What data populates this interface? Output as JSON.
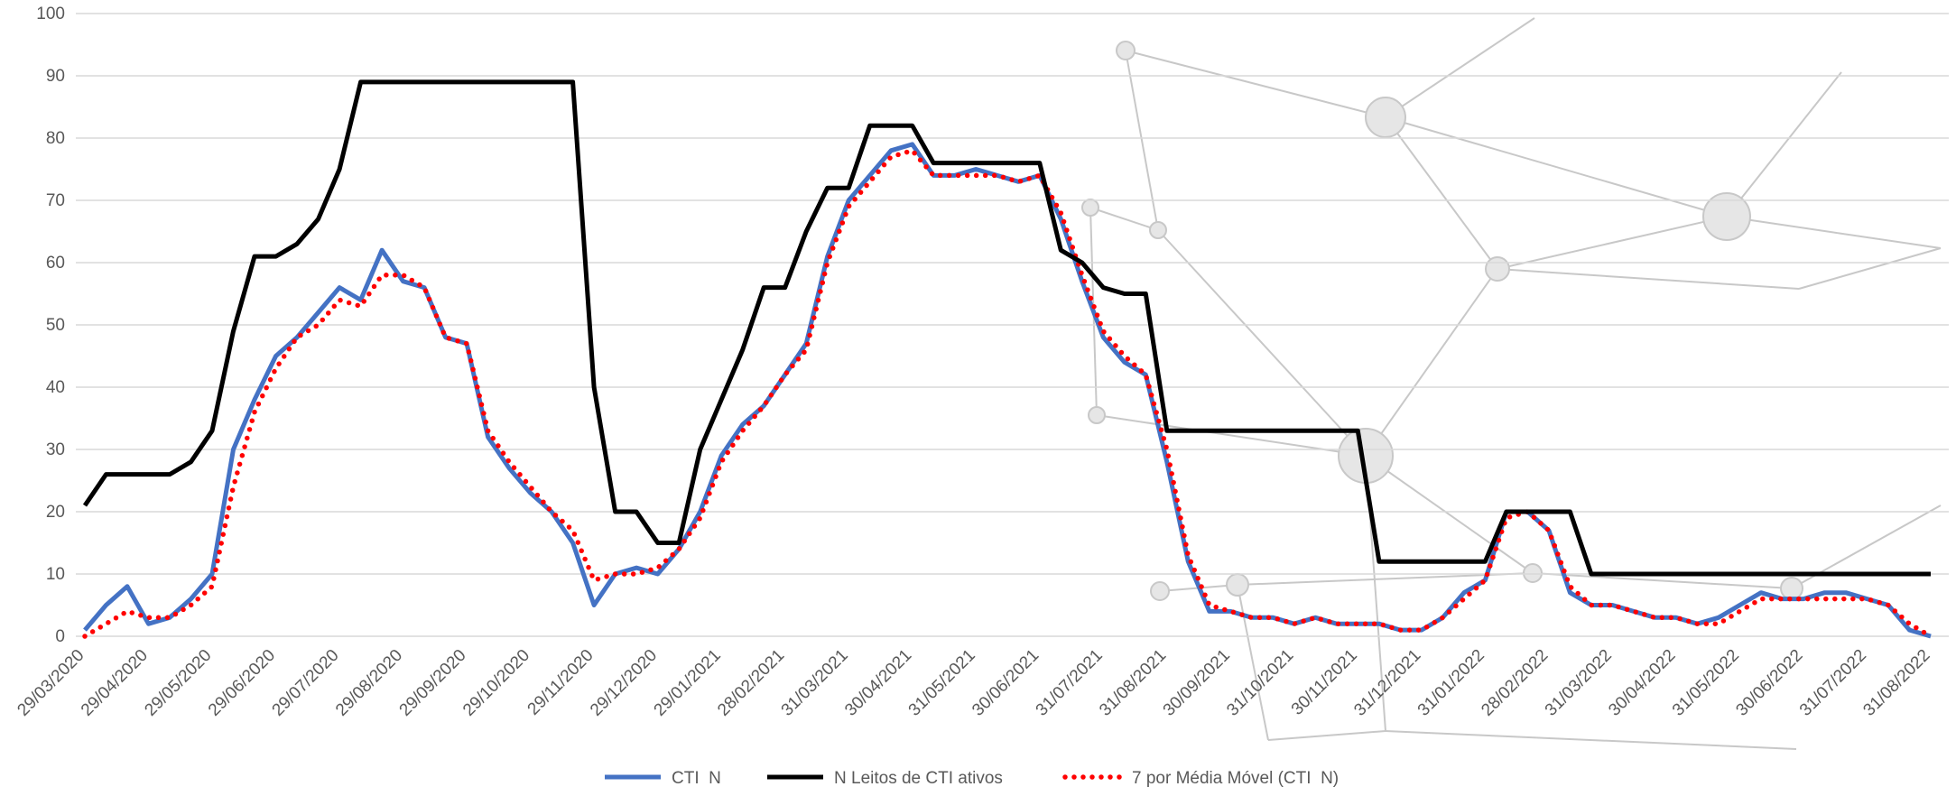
{
  "chart_data": {
    "type": "line",
    "categories": [
      "29/03/2020",
      null,
      null,
      "29/04/2020",
      null,
      null,
      "29/05/2020",
      null,
      null,
      "29/06/2020",
      null,
      null,
      "29/07/2020",
      null,
      null,
      "29/08/2020",
      null,
      null,
      "29/09/2020",
      null,
      null,
      "29/10/2020",
      null,
      null,
      "29/11/2020",
      null,
      null,
      "29/12/2020",
      null,
      null,
      "29/01/2021",
      null,
      null,
      "28/02/2021",
      null,
      null,
      "31/03/2021",
      null,
      null,
      "30/04/2021",
      null,
      null,
      "31/05/2021",
      null,
      null,
      "30/06/2021",
      null,
      null,
      "31/07/2021",
      null,
      null,
      "31/08/2021",
      null,
      null,
      "30/09/2021",
      null,
      null,
      "31/10/2021",
      null,
      null,
      "30/11/2021",
      null,
      null,
      "31/12/2021",
      null,
      null,
      "31/01/2022",
      null,
      null,
      "28/02/2022",
      null,
      null,
      "31/03/2022",
      null,
      null,
      "30/04/2022",
      null,
      null,
      "31/05/2022",
      null,
      null,
      "30/06/2022",
      null,
      null,
      "31/07/2022",
      null,
      null,
      "31/08/2022"
    ],
    "series": [
      {
        "name": "CTI  N",
        "color": "#4472c4",
        "line_style": "solid",
        "values": [
          1,
          5,
          8,
          2,
          3,
          6,
          10,
          30,
          38,
          45,
          48,
          52,
          56,
          54,
          62,
          57,
          56,
          48,
          47,
          32,
          27,
          23,
          20,
          15,
          5,
          10,
          11,
          10,
          14,
          20,
          29,
          34,
          37,
          42,
          47,
          61,
          70,
          74,
          78,
          79,
          74,
          74,
          75,
          74,
          73,
          74,
          67,
          57,
          48,
          44,
          42,
          28,
          12,
          4,
          4,
          3,
          3,
          2,
          3,
          2,
          2,
          2,
          1,
          1,
          3,
          7,
          9,
          20,
          20,
          17,
          7,
          5,
          5,
          4,
          3,
          3,
          2,
          3,
          5,
          7,
          6,
          6,
          7,
          7,
          6,
          5,
          1,
          0
        ]
      },
      {
        "name": "N Leitos de CTI ativos",
        "color": "#000000",
        "line_style": "solid",
        "values": [
          21,
          26,
          26,
          26,
          26,
          28,
          33,
          49,
          61,
          61,
          63,
          67,
          75,
          89,
          89,
          89,
          89,
          89,
          89,
          89,
          89,
          89,
          89,
          89,
          40,
          20,
          20,
          15,
          15,
          30,
          38,
          46,
          56,
          56,
          65,
          72,
          72,
          82,
          82,
          82,
          76,
          76,
          76,
          76,
          76,
          76,
          62,
          60,
          56,
          55,
          55,
          33,
          33,
          33,
          33,
          33,
          33,
          33,
          33,
          33,
          33,
          12,
          12,
          12,
          12,
          12,
          12,
          20,
          20,
          20,
          20,
          10,
          10,
          10,
          10,
          10,
          10,
          10,
          10,
          10,
          10,
          10,
          10,
          10,
          10,
          10,
          10,
          10
        ]
      },
      {
        "name": "7 por Média Móvel (CTI  N)",
        "color": "#ff0000",
        "line_style": "dotted",
        "values": [
          0,
          2,
          4,
          3,
          3,
          5,
          8,
          24,
          36,
          43,
          48,
          50,
          54,
          53,
          58,
          58,
          56,
          48,
          47,
          33,
          28,
          24,
          20,
          17,
          9,
          10,
          10,
          11,
          14,
          19,
          28,
          33,
          37,
          42,
          46,
          60,
          69,
          73,
          77,
          78,
          74,
          74,
          74,
          74,
          73,
          74,
          68,
          58,
          49,
          45,
          42,
          30,
          13,
          5,
          4,
          3,
          3,
          2,
          3,
          2,
          2,
          2,
          1,
          1,
          3,
          6,
          9,
          19,
          20,
          17,
          8,
          5,
          5,
          4,
          3,
          3,
          2,
          2,
          4,
          6,
          6,
          6,
          6,
          6,
          6,
          5,
          2,
          0
        ]
      }
    ],
    "ylim": [
      0,
      100
    ],
    "yticks": [
      0,
      10,
      20,
      30,
      40,
      50,
      60,
      70,
      80,
      90,
      100
    ],
    "grid": true,
    "legend": "bottom"
  }
}
